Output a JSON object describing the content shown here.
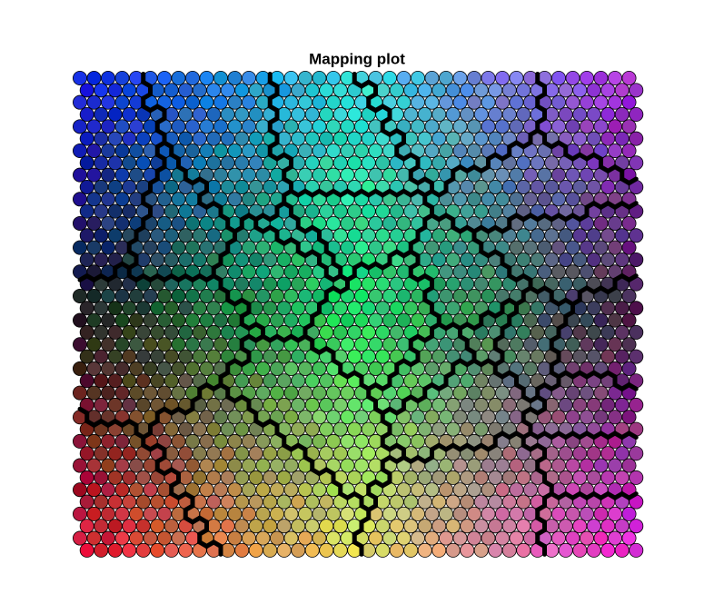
{
  "chart_data": {
    "type": "mapping",
    "title": "Mapping plot"
  }
}
